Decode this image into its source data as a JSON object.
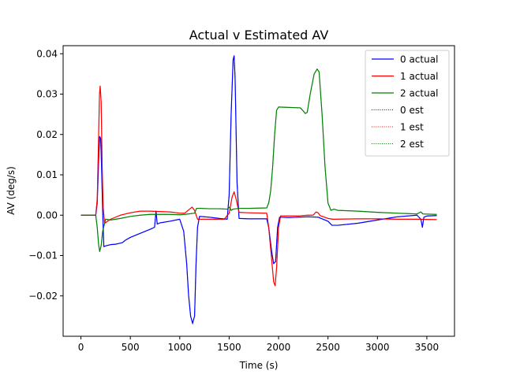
{
  "chart_data": {
    "type": "line",
    "title": "Actual v Estimated AV",
    "xlabel": "Time (s)",
    "ylabel": "AV (deg/s)",
    "xlim": [
      -180,
      3780
    ],
    "ylim": [
      -0.03,
      0.042
    ],
    "xticks": [
      0,
      500,
      1000,
      1500,
      2000,
      2500,
      3000,
      3500
    ],
    "yticks": [
      -0.02,
      -0.01,
      0.0,
      0.01,
      0.02,
      0.03,
      0.04
    ],
    "ytick_labels": [
      "−0.02",
      "−0.01",
      "0.00",
      "0.01",
      "0.02",
      "0.03",
      "0.04"
    ],
    "grid": false,
    "legend": "top-right",
    "series": [
      {
        "name": "0 actual",
        "color": "#0000ff",
        "style": "solid",
        "points": [
          [
            0,
            0
          ],
          [
            150,
            0
          ],
          [
            165,
            0.003
          ],
          [
            180,
            0.014
          ],
          [
            190,
            0.0195
          ],
          [
            200,
            0.019
          ],
          [
            210,
            0.011
          ],
          [
            220,
            0.001
          ],
          [
            232,
            -0.0078
          ],
          [
            250,
            -0.0076
          ],
          [
            300,
            -0.0073
          ],
          [
            350,
            -0.0072
          ],
          [
            420,
            -0.0068
          ],
          [
            450,
            -0.0062
          ],
          [
            500,
            -0.0055
          ],
          [
            600,
            -0.0045
          ],
          [
            700,
            -0.0035
          ],
          [
            745,
            -0.003
          ],
          [
            760,
            0.001
          ],
          [
            772,
            -0.0022
          ],
          [
            800,
            -0.0019
          ],
          [
            900,
            -0.0015
          ],
          [
            1000,
            -0.001
          ],
          [
            1040,
            -0.004
          ],
          [
            1070,
            -0.012
          ],
          [
            1090,
            -0.02
          ],
          [
            1110,
            -0.025
          ],
          [
            1130,
            -0.0268
          ],
          [
            1150,
            -0.025
          ],
          [
            1165,
            -0.012
          ],
          [
            1180,
            -0.003
          ],
          [
            1200,
            -0.0003
          ],
          [
            1300,
            -0.0005
          ],
          [
            1400,
            -0.0008
          ],
          [
            1480,
            -0.001
          ],
          [
            1500,
            0.005
          ],
          [
            1520,
            0.025
          ],
          [
            1540,
            0.0385
          ],
          [
            1550,
            0.0395
          ],
          [
            1560,
            0.034
          ],
          [
            1580,
            0.008
          ],
          [
            1600,
            -0.0008
          ],
          [
            1700,
            -0.0009
          ],
          [
            1880,
            -0.0009
          ],
          [
            1900,
            -0.003
          ],
          [
            1930,
            -0.009
          ],
          [
            1950,
            -0.012
          ],
          [
            1970,
            -0.0115
          ],
          [
            1990,
            -0.003
          ],
          [
            2010,
            -0.0005
          ],
          [
            2100,
            -0.0006
          ],
          [
            2200,
            -0.0005
          ],
          [
            2300,
            -0.0004
          ],
          [
            2400,
            -0.0005
          ],
          [
            2500,
            -0.0015
          ],
          [
            2540,
            -0.0025
          ],
          [
            2600,
            -0.0025
          ],
          [
            2800,
            -0.002
          ],
          [
            3000,
            -0.0012
          ],
          [
            3200,
            -0.0004
          ],
          [
            3400,
            0.0
          ],
          [
            3440,
            -0.001
          ],
          [
            3455,
            -0.003
          ],
          [
            3470,
            -0.0005
          ],
          [
            3500,
            -0.0002
          ],
          [
            3600,
            -0.0001
          ]
        ]
      },
      {
        "name": "1 actual",
        "color": "#ff0000",
        "style": "solid",
        "points": [
          [
            0,
            0
          ],
          [
            150,
            0
          ],
          [
            165,
            0.004
          ],
          [
            178,
            0.018
          ],
          [
            188,
            0.03
          ],
          [
            195,
            0.032
          ],
          [
            205,
            0.028
          ],
          [
            215,
            0.012
          ],
          [
            225,
            0.002
          ],
          [
            240,
            -0.002
          ],
          [
            300,
            -0.001
          ],
          [
            400,
            0.0
          ],
          [
            500,
            0.0006
          ],
          [
            600,
            0.001
          ],
          [
            700,
            0.001
          ],
          [
            800,
            0.0009
          ],
          [
            900,
            0.0008
          ],
          [
            1000,
            0.0005
          ],
          [
            1050,
            0.0005
          ],
          [
            1100,
            0.0015
          ],
          [
            1125,
            0.002
          ],
          [
            1150,
            0.0012
          ],
          [
            1180,
            -0.001
          ],
          [
            1300,
            -0.001
          ],
          [
            1450,
            -0.001
          ],
          [
            1500,
            0.0005
          ],
          [
            1530,
            0.0045
          ],
          [
            1550,
            0.0058
          ],
          [
            1570,
            0.004
          ],
          [
            1600,
            0.0007
          ],
          [
            1700,
            0.0006
          ],
          [
            1880,
            0.0005
          ],
          [
            1900,
            -0.003
          ],
          [
            1930,
            -0.011
          ],
          [
            1950,
            -0.0165
          ],
          [
            1965,
            -0.0175
          ],
          [
            1980,
            -0.013
          ],
          [
            2000,
            -0.003
          ],
          [
            2020,
            -0.0002
          ],
          [
            2100,
            -0.0002
          ],
          [
            2200,
            -0.0002
          ],
          [
            2300,
            0.0
          ],
          [
            2350,
            0.0
          ],
          [
            2380,
            0.0008
          ],
          [
            2400,
            0.0006
          ],
          [
            2420,
            -0.0001
          ],
          [
            2500,
            -0.0008
          ],
          [
            2550,
            -0.001
          ],
          [
            2800,
            -0.0009
          ],
          [
            3000,
            -0.0009
          ],
          [
            3200,
            -0.001
          ],
          [
            3400,
            -0.001
          ],
          [
            3600,
            -0.0011
          ]
        ]
      },
      {
        "name": "2 actual",
        "color": "#008000",
        "style": "solid",
        "points": [
          [
            0,
            0
          ],
          [
            150,
            0
          ],
          [
            165,
            -0.003
          ],
          [
            180,
            -0.0075
          ],
          [
            190,
            -0.009
          ],
          [
            205,
            -0.0075
          ],
          [
            220,
            -0.004
          ],
          [
            250,
            -0.001
          ],
          [
            300,
            -0.0012
          ],
          [
            400,
            -0.0008
          ],
          [
            500,
            -0.0003
          ],
          [
            600,
            0.0
          ],
          [
            700,
            0.0002
          ],
          [
            800,
            0.0002
          ],
          [
            900,
            0.0002
          ],
          [
            1000,
            0.0001
          ],
          [
            1050,
            0.0002
          ],
          [
            1150,
            0.0005
          ],
          [
            1170,
            0.0017
          ],
          [
            1200,
            0.0017
          ],
          [
            1300,
            0.0016
          ],
          [
            1400,
            0.0016
          ],
          [
            1480,
            0.0015
          ],
          [
            1495,
            0.0018
          ],
          [
            1505,
            0.002
          ],
          [
            1520,
            0.0012
          ],
          [
            1540,
            0.0015
          ],
          [
            1600,
            0.0017
          ],
          [
            1700,
            0.0017
          ],
          [
            1880,
            0.0018
          ],
          [
            1900,
            0.003
          ],
          [
            1920,
            0.006
          ],
          [
            1940,
            0.012
          ],
          [
            1960,
            0.02
          ],
          [
            1980,
            0.026
          ],
          [
            2000,
            0.0268
          ],
          [
            2100,
            0.0267
          ],
          [
            2220,
            0.0266
          ],
          [
            2250,
            0.0258
          ],
          [
            2270,
            0.0252
          ],
          [
            2290,
            0.0255
          ],
          [
            2320,
            0.03
          ],
          [
            2360,
            0.035
          ],
          [
            2390,
            0.0362
          ],
          [
            2410,
            0.0355
          ],
          [
            2440,
            0.025
          ],
          [
            2470,
            0.012
          ],
          [
            2500,
            0.003
          ],
          [
            2530,
            0.0012
          ],
          [
            2560,
            0.0015
          ],
          [
            2600,
            0.0012
          ],
          [
            2800,
            0.001
          ],
          [
            3000,
            0.0007
          ],
          [
            3200,
            0.0005
          ],
          [
            3400,
            0.0003
          ],
          [
            3440,
            0.0008
          ],
          [
            3460,
            0.0003
          ],
          [
            3600,
            0.0002
          ]
        ]
      }
    ],
    "estimate_series": [
      {
        "name": "0 est",
        "color": "#0000ff",
        "style": "dotted",
        "matches": 0
      },
      {
        "name": "1 est",
        "color": "#ff0000",
        "style": "dotted",
        "matches": 1
      },
      {
        "name": "2 est",
        "color": "#008000",
        "style": "dotted",
        "matches": 2
      }
    ]
  }
}
